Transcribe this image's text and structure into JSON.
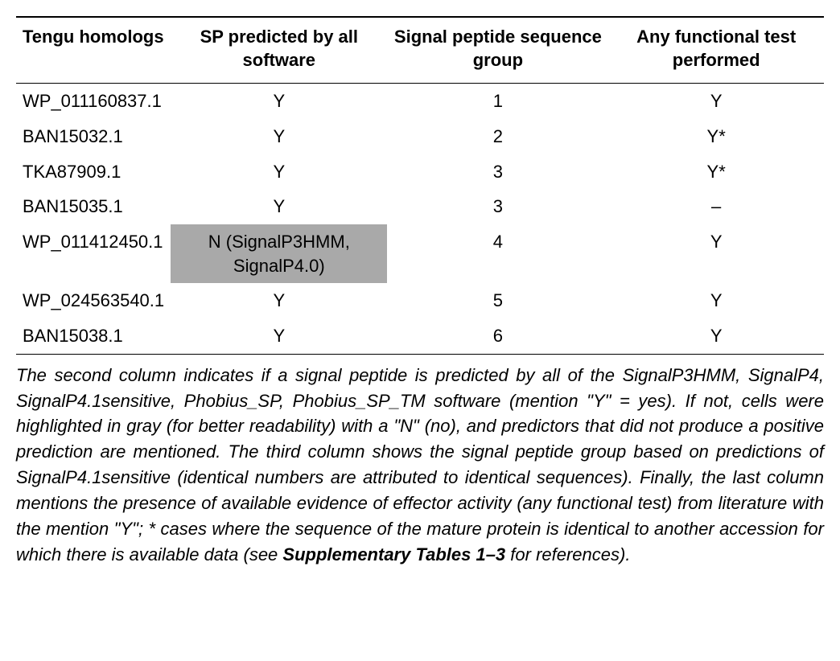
{
  "table": {
    "columns": [
      {
        "label": "Tengu homologs",
        "align": "left"
      },
      {
        "label": "SP predicted by all software",
        "align": "center"
      },
      {
        "label": "Signal peptide sequence group",
        "align": "center"
      },
      {
        "label": "Any functional test performed",
        "align": "center"
      }
    ],
    "rows": [
      {
        "homolog": "WP_011160837.1",
        "sp": "Y",
        "sp_gray": false,
        "group": "1",
        "test": "Y"
      },
      {
        "homolog": "BAN15032.1",
        "sp": "Y",
        "sp_gray": false,
        "group": "2",
        "test": "Y*"
      },
      {
        "homolog": "TKA87909.1",
        "sp": "Y",
        "sp_gray": false,
        "group": "3",
        "test": "Y*"
      },
      {
        "homolog": "BAN15035.1",
        "sp": "Y",
        "sp_gray": false,
        "group": "3",
        "test": "–"
      },
      {
        "homolog": "WP_011412450.1",
        "sp": "N (SignalP3HMM, SignalP4.0)",
        "sp_gray": true,
        "group": "4",
        "test": "Y"
      },
      {
        "homolog": "WP_024563540.1",
        "sp": "Y",
        "sp_gray": false,
        "group": "5",
        "test": "Y"
      },
      {
        "homolog": "BAN15038.1",
        "sp": "Y",
        "sp_gray": false,
        "group": "6",
        "test": "Y"
      }
    ],
    "gray_bg": "#a9a9a9",
    "border_color": "#000000",
    "background_color": "#ffffff",
    "font_size_body": 22,
    "font_size_caption": 22
  },
  "caption": {
    "part1": "The second column indicates if a signal peptide is predicted by all of the SignalP3HMM, SignalP4, SignalP4.1sensitive, Phobius_SP, Phobius_SP_TM software (mention \"Y\" = yes). If not, cells were highlighted in gray (for better readability) with a \"N\" (no), and predictors that did not produce a positive prediction are mentioned. The third column shows the signal peptide group based on predictions of SignalP4.1sensitive (identical numbers are attributed to identical sequences). Finally, the last column mentions the presence of available evidence of effector activity (any functional test) from literature with the mention \"Y\"; * cases where the sequence of the mature protein is identical to another accession for which there is available data (see ",
    "bold": "Supplementary Tables 1–3",
    "part2": " for references)."
  }
}
